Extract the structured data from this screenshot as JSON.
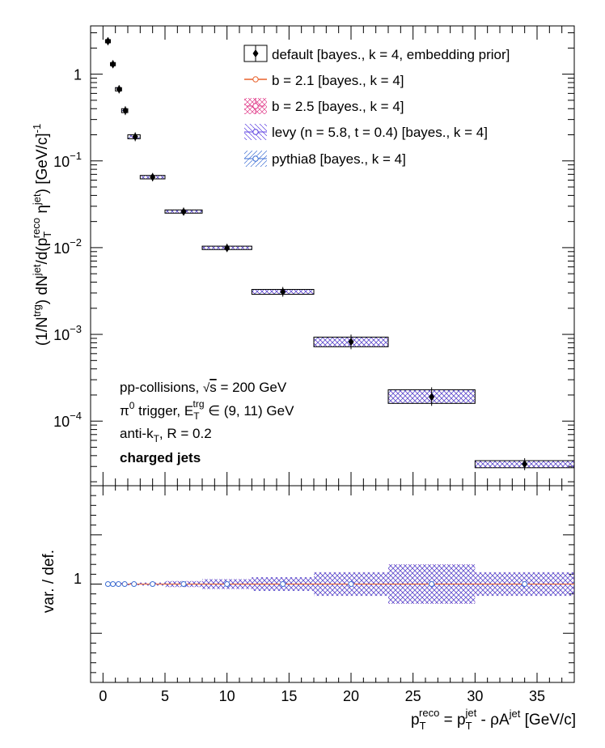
{
  "chart_data": [
    {
      "type": "scatter",
      "panel": "top",
      "ylabel": {
        "pre": "(1/N",
        "sup1": "trg",
        "mid1": ") dN",
        "sup2": "jet",
        "mid2": "/d(p",
        "sub3": "T",
        "sup3": "reco",
        "mid3": " η",
        "sup4": "jet",
        "mid4": ") [GeV/c]",
        "sup5": "-1"
      },
      "yscale": "log",
      "ylim": [
        1.8e-05,
        3.6
      ],
      "xlim": [
        -1,
        38
      ],
      "ytick_labels": [
        {
          "value": 1,
          "base": "1",
          "exp": ""
        },
        {
          "value": 0.1,
          "base": "10",
          "exp": "−1"
        },
        {
          "value": 0.01,
          "base": "10",
          "exp": "−2"
        },
        {
          "value": 0.001,
          "base": "10",
          "exp": "−3"
        },
        {
          "value": 0.0001,
          "base": "10",
          "exp": "−4"
        }
      ],
      "points": [
        {
          "x": 0.4,
          "xlo": 0.2,
          "xhi": 0.6,
          "y": 2.4,
          "ylo": 2.3,
          "yhi": 2.5
        },
        {
          "x": 0.8,
          "xlo": 0.6,
          "xhi": 1.0,
          "y": 1.3,
          "ylo": 1.25,
          "yhi": 1.36
        },
        {
          "x": 1.3,
          "xlo": 1.0,
          "xhi": 1.5,
          "y": 0.67,
          "ylo": 0.64,
          "yhi": 0.7
        },
        {
          "x": 1.8,
          "xlo": 1.5,
          "xhi": 2.0,
          "y": 0.38,
          "ylo": 0.36,
          "yhi": 0.4
        },
        {
          "x": 2.6,
          "xlo": 2.0,
          "xhi": 3.0,
          "y": 0.19,
          "ylo": 0.18,
          "yhi": 0.2
        },
        {
          "x": 4.0,
          "xlo": 3.0,
          "xhi": 5.0,
          "y": 0.065,
          "ylo": 0.062,
          "yhi": 0.068
        },
        {
          "x": 6.5,
          "xlo": 5.0,
          "xhi": 8.0,
          "y": 0.026,
          "ylo": 0.025,
          "yhi": 0.0272
        },
        {
          "x": 10.0,
          "xlo": 8.0,
          "xhi": 12.0,
          "y": 0.0099,
          "ylo": 0.0095,
          "yhi": 0.0104
        },
        {
          "x": 14.5,
          "xlo": 12.0,
          "xhi": 17.0,
          "y": 0.0031,
          "ylo": 0.0029,
          "yhi": 0.0033
        },
        {
          "x": 20.0,
          "xlo": 17.0,
          "xhi": 23.0,
          "y": 0.00082,
          "ylo": 0.00072,
          "yhi": 0.00093
        },
        {
          "x": 26.5,
          "xlo": 23.0,
          "xhi": 30.0,
          "y": 0.00019,
          "ylo": 0.00016,
          "yhi": 0.00023
        },
        {
          "x": 34.0,
          "xlo": 30.0,
          "xhi": 38.0,
          "y": 3.2e-05,
          "ylo": 2.9e-05,
          "yhi": 3.5e-05
        }
      ],
      "legend": [
        {
          "label": "default [bayes., k = 4, embedding prior]",
          "style": "default"
        },
        {
          "label": "b = 2.1 [bayes., k = 4]",
          "style": "b21"
        },
        {
          "label": "b = 2.5 [bayes., k = 4]",
          "style": "b25"
        },
        {
          "label": "levy (n = 5.8, t = 0.4) [bayes., k = 4]",
          "style": "levy"
        },
        {
          "label": "pythia8 [bayes., k = 4]",
          "style": "pythia"
        }
      ],
      "legend_position": "top-right",
      "annotations": {
        "line1": {
          "pre": "pp-collisions, ",
          "root": "√",
          "over": "s",
          "post": " = 200 GeV"
        },
        "line2": {
          "pre": "π",
          "sup_a": "0",
          "mid": " trigger, E",
          "sub_b": "T",
          "sup_b": "trg",
          "post": " ∈ (9, 11) GeV"
        },
        "line3": {
          "pre": "anti-k",
          "sub": "T",
          "post": ", R = 0.2"
        },
        "line4": "charged jets"
      }
    },
    {
      "type": "scatter",
      "panel": "bottom",
      "ylabel": "var. / def.",
      "ylim": [
        0.0,
        2.0
      ],
      "ytick_label": "1",
      "xlim": [
        -1,
        38
      ],
      "xlabel": {
        "p1": "p",
        "sub1": "T",
        "sup1": "reco",
        "p2": " = p",
        "sub2": "T",
        "sup2": "jet",
        "p3": " - ρA",
        "sup3": "jet",
        "p4": " [GeV/c]"
      },
      "xtick_labels": [
        "0",
        "5",
        "10",
        "15",
        "20",
        "25",
        "30",
        "35"
      ],
      "ratio_bands": [
        {
          "xlo": 0.2,
          "xhi": 0.6,
          "half": 0.004
        },
        {
          "xlo": 0.6,
          "xhi": 1.0,
          "half": 0.005
        },
        {
          "xlo": 1.0,
          "xhi": 1.5,
          "half": 0.006
        },
        {
          "xlo": 1.5,
          "xhi": 2.0,
          "half": 0.008
        },
        {
          "xlo": 2.0,
          "xhi": 3.0,
          "half": 0.01
        },
        {
          "xlo": 3.0,
          "xhi": 5.0,
          "half": 0.015
        },
        {
          "xlo": 5.0,
          "xhi": 8.0,
          "half": 0.03
        },
        {
          "xlo": 8.0,
          "xhi": 12.0,
          "half": 0.05
        },
        {
          "xlo": 12.0,
          "xhi": 17.0,
          "half": 0.07
        },
        {
          "xlo": 17.0,
          "xhi": 23.0,
          "half": 0.12
        },
        {
          "xlo": 23.0,
          "xhi": 30.0,
          "half": 0.2
        },
        {
          "xlo": 30.0,
          "xhi": 38.0,
          "half": 0.12
        }
      ]
    }
  ],
  "colors": {
    "default": "#000000",
    "b21": "#e8622c",
    "b25": "#e03c8a",
    "levy": "#5a3ee0",
    "pythia": "#3d6fd4"
  }
}
